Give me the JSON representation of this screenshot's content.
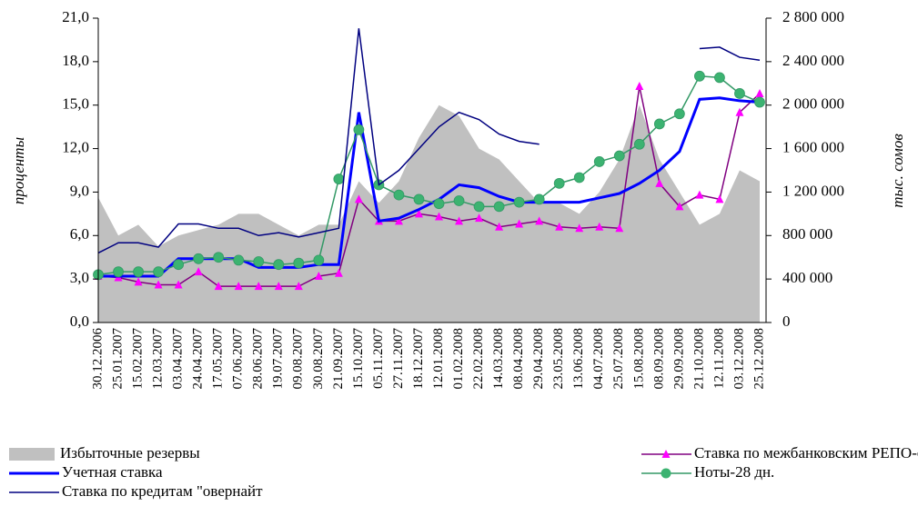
{
  "chart_data": {
    "type": "line",
    "y_label": "проценты",
    "y2_label": "тыс. сомов",
    "categories": [
      "30.12.2006",
      "25.01.2007",
      "15.02.2007",
      "12.03.2007",
      "03.04.2007",
      "24.04.2007",
      "17.05.2007",
      "07.06.2007",
      "28.06.2007",
      "19.07.2007",
      "09.08.2007",
      "30.08.2007",
      "21.09.2007",
      "15.10.2007",
      "05.11.2007",
      "27.11.2007",
      "18.12.2007",
      "12.01.2008",
      "01.02.2008",
      "22.02.2008",
      "14.03.2008",
      "08.04.2008",
      "29.04.2008",
      "23.05.2008",
      "13.06.2008",
      "04.07.2008",
      "25.07.2008",
      "15.08.2008",
      "08.09.2008",
      "29.09.2008",
      "21.10.2008",
      "12.11.2008",
      "03.12.2008",
      "25.12.2008"
    ],
    "ylim": [
      0,
      21
    ],
    "yticks": [
      {
        "value": 0,
        "label": "0,0"
      },
      {
        "value": 3,
        "label": "3,0"
      },
      {
        "value": 6,
        "label": "6,0"
      },
      {
        "value": 9,
        "label": "9,0"
      },
      {
        "value": 12,
        "label": "12,0"
      },
      {
        "value": 15,
        "label": "15,0"
      },
      {
        "value": 18,
        "label": "18,0"
      },
      {
        "value": 21,
        "label": "21,0"
      }
    ],
    "y2lim": [
      0,
      2800000
    ],
    "y2ticks": [
      0,
      {
        "value": 400000,
        "label": "400 000"
      },
      {
        "value": 800000,
        "label": "800 000"
      },
      {
        "value": 1200000,
        "label": "1 200 000"
      },
      {
        "value": 1600000,
        "label": "1 600 000"
      },
      {
        "value": 2000000,
        "label": "2 000 000"
      },
      {
        "value": 2400000,
        "label": "2 400 000"
      },
      {
        "value": 2800000,
        "label": "2 800 000"
      }
    ],
    "series": [
      {
        "name": "Избыточные резервы",
        "type": "area",
        "axis": "y2",
        "color": "#c0c0c0",
        "values": [
          1150000,
          800000,
          900000,
          700000,
          800000,
          850000,
          900000,
          1000000,
          1000000,
          900000,
          800000,
          900000,
          900000,
          1300000,
          1100000,
          1300000,
          1700000,
          2000000,
          1900000,
          1600000,
          1500000,
          1300000,
          1100000,
          1100000,
          1000000,
          1200000,
          1500000,
          2000000,
          1500000,
          1200000,
          900000,
          1000000,
          1400000,
          1300000
        ]
      },
      {
        "name": "Ставка по межбанковским РЕПО-операциям",
        "type": "line",
        "color": "#800080",
        "marker": "triangle",
        "marker_color": "#ff00ff",
        "values": [
          3.2,
          3.1,
          2.8,
          2.6,
          2.6,
          3.5,
          2.5,
          2.5,
          2.5,
          2.5,
          2.5,
          3.2,
          3.4,
          8.5,
          7.0,
          7.0,
          7.5,
          7.3,
          7.0,
          7.2,
          6.6,
          6.8,
          7.0,
          6.6,
          6.5,
          6.6,
          6.5,
          16.3,
          9.6,
          8.0,
          8.8,
          8.5,
          14.5,
          15.8
        ]
      },
      {
        "name": "Учетная ставка",
        "type": "line",
        "color": "#0000ff",
        "width": 3,
        "values": [
          3.2,
          3.2,
          3.2,
          3.2,
          4.4,
          4.4,
          4.4,
          4.4,
          3.8,
          3.8,
          3.8,
          4.0,
          4.0,
          14.5,
          7.0,
          7.2,
          7.8,
          8.5,
          9.5,
          9.3,
          8.7,
          8.3,
          8.3,
          8.3,
          8.3,
          8.6,
          8.9,
          9.6,
          10.5,
          11.8,
          15.4,
          15.5,
          15.3,
          15.2
        ]
      },
      {
        "name": "Ноты-28 дн.",
        "type": "line",
        "color": "#339966",
        "marker": "circle",
        "marker_color": "#3cb371",
        "values": [
          3.3,
          3.5,
          3.5,
          3.5,
          4.0,
          4.4,
          4.5,
          4.3,
          4.2,
          4.0,
          4.1,
          4.3,
          9.9,
          13.3,
          9.5,
          8.8,
          8.5,
          8.2,
          8.4,
          8.0,
          8.0,
          8.3,
          8.5,
          9.6,
          10.0,
          11.1,
          11.5,
          12.3,
          13.7,
          14.4,
          17.0,
          16.9,
          15.8,
          15.2
        ]
      },
      {
        "name": "Ставка по кредитам \"овернайт",
        "type": "line",
        "color": "#000080",
        "width": 1.5,
        "values": [
          4.8,
          5.5,
          5.5,
          5.2,
          6.8,
          6.8,
          6.5,
          6.5,
          6.0,
          6.2,
          5.9,
          6.2,
          6.5,
          20.3,
          9.5,
          10.5,
          12.0,
          13.5,
          14.5,
          14.0,
          13.0,
          12.5,
          12.3,
          null,
          null,
          null,
          null,
          null,
          null,
          null,
          18.9,
          19.0,
          18.3,
          18.1
        ]
      }
    ],
    "legend_order": [
      0,
      2,
      4,
      1,
      3
    ]
  }
}
